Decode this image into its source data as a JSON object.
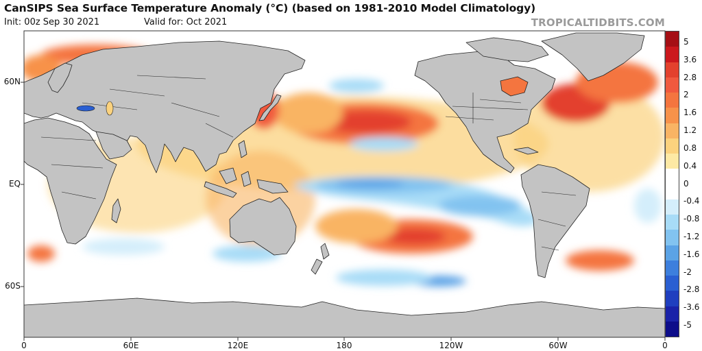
{
  "title": "CanSIPS Sea Surface Temperature Anomaly (°C) (based on 1981-2010 Model Climatology)",
  "init_text": "Init: 00z Sep 30 2021",
  "valid_text": "Valid for: Oct 2021",
  "brand": "TROPICALTIDBITS.COM",
  "lat_labels": [
    "60N",
    "EQ",
    "60S"
  ],
  "lon_labels": [
    "0",
    "60E",
    "120E",
    "180",
    "120W",
    "60W",
    "0"
  ],
  "colorbar": {
    "labels": [
      "5",
      "3.6",
      "2.8",
      "2",
      "1.6",
      "1.2",
      "0.8",
      "0.4",
      "0",
      "-0.4",
      "-0.8",
      "-1.2",
      "-1.6",
      "-2",
      "-2.8",
      "-3.6",
      "-5"
    ],
    "colors": [
      "#a50f15",
      "#cb181d",
      "#e3412d",
      "#f0593e",
      "#f4753f",
      "#f7924a",
      "#f9b464",
      "#fbd27e",
      "#fde9a4",
      "#ffffff",
      "#ffffff",
      "#d4eefb",
      "#a8dcf7",
      "#82c3f0",
      "#5ba3e6",
      "#3d7fdd",
      "#2a5fd2",
      "#1f3fbf",
      "#1a22a8",
      "#0d0d8a"
    ]
  },
  "colors": {
    "land": "#c3c3c3",
    "border": "#222222"
  }
}
